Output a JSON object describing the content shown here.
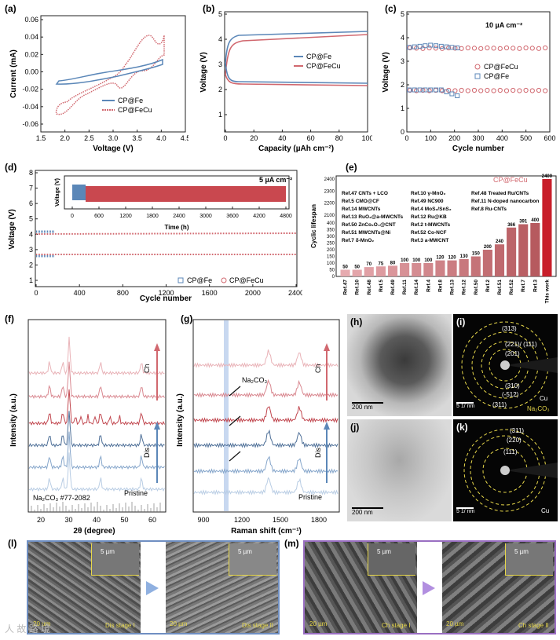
{
  "figure": {
    "panels": {
      "a": {
        "label": "(a)",
        "xlabel": "Voltage (V)",
        "ylabel": "Current (mA)",
        "xticks": [
          "1.5",
          "2.0",
          "2.5",
          "3.0",
          "3.5",
          "4.0",
          "4.5"
        ],
        "yticks": [
          "0.06",
          "0.04",
          "0.02",
          "0.00",
          "-0.02",
          "-0.04",
          "-0.06"
        ],
        "legend": [
          "CP@Fe",
          "CP@FeCu"
        ]
      },
      "b": {
        "label": "(b)",
        "xlabel": "Capacity (µAh cm⁻²)",
        "ylabel": "Voltage (V)",
        "xticks": [
          "0",
          "20",
          "40",
          "60",
          "80",
          "100"
        ],
        "yticks": [
          "1",
          "2",
          "3",
          "4",
          "5"
        ],
        "legend": [
          "CP@Fe",
          "CP@FeCu"
        ]
      },
      "c": {
        "label": "(c)",
        "xlabel": "Cycle number",
        "ylabel": "Voltage (V)",
        "xticks": [
          "0",
          "100",
          "200",
          "300",
          "400",
          "500",
          "600"
        ],
        "yticks": [
          "0",
          "1",
          "2",
          "3",
          "4",
          "5"
        ],
        "annotation": "10 µA cm⁻²",
        "legend": [
          "CP@FeCu",
          "CP@Fe"
        ]
      },
      "d": {
        "label": "(d)",
        "xlabel": "Cycle number",
        "ylabel": "Voltage (V)",
        "xticks": [
          "0",
          "400",
          "800",
          "1200",
          "1600",
          "2000",
          "2400"
        ],
        "yticks": [
          "1",
          "2",
          "3",
          "4",
          "5",
          "6",
          "7",
          "8"
        ],
        "annotation": "5 µA cm⁻²",
        "legend": [
          "CP@Fe",
          "CP@FeCu"
        ],
        "inset": {
          "xlabel": "Time (h)",
          "ylabel": "Voltage (V)",
          "xticks": [
            "0",
            "600",
            "1200",
            "1800",
            "2400",
            "3000",
            "3600",
            "4200",
            "4800"
          ],
          "yticks": [
            "2",
            "3",
            "4",
            "5"
          ]
        }
      },
      "e": {
        "label": "(e)",
        "ylabel": "Cyclic lifespan",
        "title": "CP@FeCu",
        "yticks": [
          "0",
          "50",
          "100",
          "150",
          "200",
          "250",
          "300",
          "350",
          "400",
          "2100",
          "2200",
          "2300",
          "2400"
        ],
        "refs_left": [
          "Ref.47 CNTs + LCO",
          "Ref.5 CMO@CF",
          "Ref.14 MWCNTs",
          "Ref.13 RuO₂@a-MWCNTs",
          "Ref.50 ZnCo₂O₄@CNT",
          "Ref.51 MWCNTs@Ni",
          "Ref.7 δ-MnO₂"
        ],
        "refs_mid": [
          "Ref.10 γ-MnO₂",
          "Ref.49 NC900",
          "Ref.4 MoS₂/SnS₂",
          "Ref.12 Ru@KB",
          "Ref.2 t-MWCNTs",
          "Ref.52 Co-NCF",
          "Ref.3 a-MWCNT"
        ],
        "refs_right": [
          "Ref.48 Treated Ru/CNTs",
          "Ref.11 N-doped nanocarbon",
          "Ref.8 Ru-CNTs"
        ]
      },
      "f": {
        "label": "(f)",
        "xlabel": "2θ (degree)",
        "ylabel": "Intensity (a.u.)",
        "xticks": [
          "20",
          "30",
          "40",
          "50",
          "60"
        ],
        "ref_label": "Na₂CO₃ #77-2082",
        "labels": {
          "pristine": "Pristine",
          "dis": "Dis",
          "ch": "Ch"
        }
      },
      "g": {
        "label": "(g)",
        "xlabel": "Raman shift (cm⁻¹)",
        "ylabel": "Intensity (a.u.)",
        "xticks": [
          "900",
          "1200",
          "1500",
          "1800"
        ],
        "annotation": "Na₂CO₃",
        "labels": {
          "pristine": "Pristine",
          "dis": "Dis",
          "ch": "Ch"
        }
      },
      "h": {
        "label": "(h)",
        "scale": "200 nm"
      },
      "i": {
        "label": "(i)",
        "scale": "5 1/ nm",
        "rings": [
          "(313)",
          "(221)/ (111)",
          "(201)",
          "(310)",
          "(-512)",
          "(311)"
        ],
        "tags": [
          "Cu",
          "Na₂CO₃"
        ]
      },
      "j": {
        "label": "(j)",
        "scale": "200 nm"
      },
      "k": {
        "label": "(k)",
        "scale": "5 1/ nm",
        "rings": [
          "(311)",
          "(220)",
          "(111)"
        ],
        "tags": [
          "Cu"
        ]
      },
      "l": {
        "label": "(l)",
        "scale_big": "20 µm",
        "scale_small": "5 µm",
        "stage1": "Dis stage I",
        "stage2": "Dis stage II"
      },
      "m": {
        "label": "(m)",
        "scale_big": "20 µm",
        "scale_small": "5 µm",
        "stage1": "Ch stage I",
        "stage2": "Ch stage II"
      }
    },
    "watermark": "人 故 路 境",
    "colors": {
      "fe": "#5b87b8",
      "fecu": "#d1686f",
      "fecu_fill": "#c9484f"
    }
  },
  "chart_data": [
    {
      "type": "bar",
      "title": "CP@FeCu",
      "ylabel": "Cyclic lifespan",
      "categories": [
        "Ref.47",
        "Ref.10",
        "Ref.48",
        "Ref.5",
        "Ref.49",
        "Ref.11",
        "Ref.14",
        "Ref.4",
        "Ref.8",
        "Ref.13",
        "Ref.12",
        "Ref.50",
        "Ref.2",
        "Ref.51",
        "Ref.52",
        "Ref.7",
        "Ref.3",
        "This work"
      ],
      "values": [
        50,
        50,
        70,
        75,
        80,
        100,
        100,
        100,
        120,
        120,
        130,
        150,
        200,
        240,
        366,
        391,
        400,
        2400
      ],
      "value_labels": [
        "50",
        "50",
        "70",
        "75",
        "80",
        "100",
        "100",
        "100",
        "120",
        "120",
        "130",
        "150",
        "200",
        "240",
        "366",
        "391",
        "400",
        "2400"
      ]
    }
  ]
}
